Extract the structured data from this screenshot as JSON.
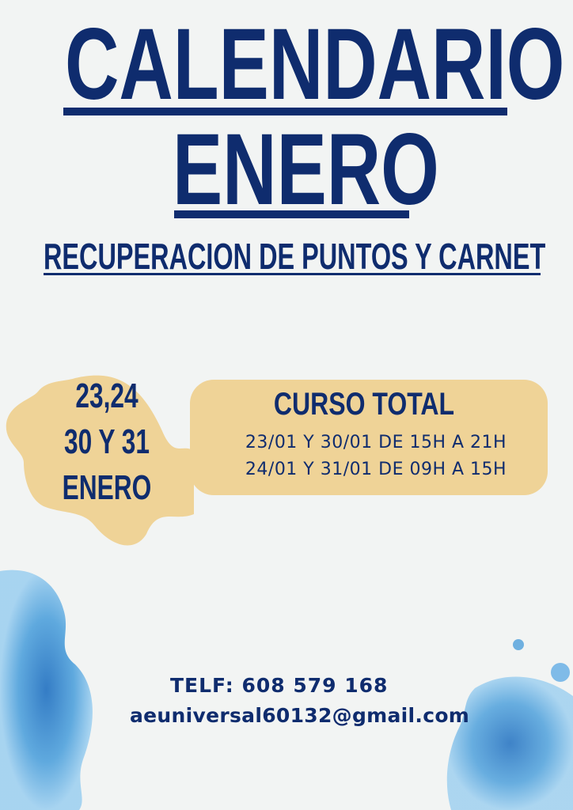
{
  "title": {
    "line1": "CALENDARIO",
    "line2": "ENERO"
  },
  "subtitle": "RECUPERACION DE PUNTOS Y CARNET",
  "dates_badge": {
    "line1": "23,24",
    "line2": "30 Y 31",
    "line3": "ENERO"
  },
  "course": {
    "heading": "CURSO TOTAL",
    "schedule": [
      "23/01 Y 30/01 DE 15H A 21H",
      "24/01 Y 31/01 DE 09H A 15H"
    ]
  },
  "contact": {
    "phone": "TELF: 608 579 168",
    "email": "aeuniversal60132@gmail.com"
  },
  "colors": {
    "navy": "#0f2c6e",
    "beige": "#efd397",
    "background": "#f2f4f3",
    "watercolor_blue": "#3f95d6"
  }
}
